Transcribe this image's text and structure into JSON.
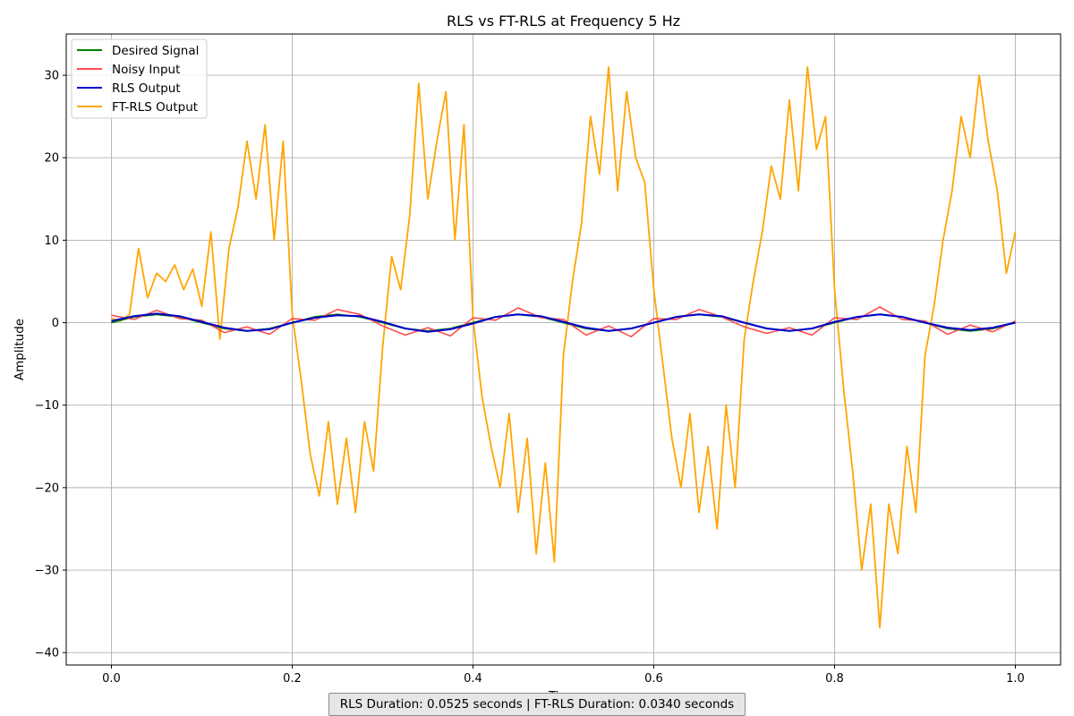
{
  "chart_data": {
    "type": "line",
    "title": "RLS vs FT-RLS at Frequency 5 Hz",
    "xlabel": "Time",
    "ylabel": "Amplitude",
    "xlim": [
      -0.05,
      1.05
    ],
    "ylim": [
      -41.5,
      35
    ],
    "xticks": [
      0.0,
      0.2,
      0.4,
      0.6,
      0.8,
      1.0
    ],
    "xtick_labels": [
      "0.0",
      "0.2",
      "0.4",
      "0.6",
      "0.8",
      "1.0"
    ],
    "yticks": [
      -40,
      -30,
      -20,
      -10,
      0,
      10,
      20,
      30
    ],
    "ytick_labels": [
      "−40",
      "−30",
      "−20",
      "−10",
      "0",
      "10",
      "20",
      "30"
    ],
    "grid": true,
    "legend_position": "top-left",
    "series": [
      {
        "name": "Desired Signal",
        "color": "#008000",
        "x": [
          0,
          0.025,
          0.05,
          0.075,
          0.1,
          0.125,
          0.15,
          0.175,
          0.2,
          0.225,
          0.25,
          0.275,
          0.3,
          0.325,
          0.35,
          0.375,
          0.4,
          0.425,
          0.45,
          0.475,
          0.5,
          0.525,
          0.55,
          0.575,
          0.6,
          0.625,
          0.65,
          0.675,
          0.7,
          0.725,
          0.75,
          0.775,
          0.8,
          0.825,
          0.85,
          0.875,
          0.9,
          0.925,
          0.95,
          0.975,
          1.0
        ],
        "y": [
          0,
          0.71,
          1,
          0.71,
          0,
          -0.71,
          -1,
          -0.71,
          0,
          0.71,
          1,
          0.71,
          0,
          -0.71,
          -1,
          -0.71,
          0,
          0.71,
          1,
          0.71,
          0,
          -0.71,
          -1,
          -0.71,
          0,
          0.71,
          1,
          0.71,
          0,
          -0.71,
          -1,
          -0.71,
          0,
          0.71,
          1,
          0.71,
          0,
          -0.71,
          -1,
          -0.71,
          0
        ]
      },
      {
        "name": "Noisy Input",
        "color": "#ff4d4d",
        "x": [
          0,
          0.025,
          0.05,
          0.075,
          0.1,
          0.125,
          0.15,
          0.175,
          0.2,
          0.225,
          0.25,
          0.275,
          0.3,
          0.325,
          0.35,
          0.375,
          0.4,
          0.425,
          0.45,
          0.475,
          0.5,
          0.525,
          0.55,
          0.575,
          0.6,
          0.625,
          0.65,
          0.675,
          0.7,
          0.725,
          0.75,
          0.775,
          0.8,
          0.825,
          0.85,
          0.875,
          0.9,
          0.925,
          0.95,
          0.975,
          1.0
        ],
        "y": [
          0.9,
          0.4,
          1.5,
          0.5,
          0.3,
          -1.2,
          -0.5,
          -1.4,
          0.5,
          0.3,
          1.6,
          1.0,
          -0.4,
          -1.5,
          -0.6,
          -1.6,
          0.6,
          0.3,
          1.8,
          0.6,
          0.4,
          -1.5,
          -0.4,
          -1.7,
          0.5,
          0.4,
          1.6,
          0.7,
          -0.5,
          -1.3,
          -0.6,
          -1.5,
          0.6,
          0.4,
          1.9,
          0.4,
          0.2,
          -1.4,
          -0.3,
          -1.1,
          0.2
        ]
      },
      {
        "name": "RLS Output",
        "color": "#0000cc",
        "x": [
          0,
          0.025,
          0.05,
          0.075,
          0.1,
          0.125,
          0.15,
          0.175,
          0.2,
          0.225,
          0.25,
          0.275,
          0.3,
          0.325,
          0.35,
          0.375,
          0.4,
          0.425,
          0.45,
          0.475,
          0.5,
          0.525,
          0.55,
          0.575,
          0.6,
          0.625,
          0.65,
          0.675,
          0.7,
          0.725,
          0.75,
          0.775,
          0.8,
          0.825,
          0.85,
          0.875,
          0.9,
          0.925,
          0.95,
          0.975,
          1.0
        ],
        "y": [
          0.2,
          0.8,
          1.1,
          0.8,
          0.1,
          -0.6,
          -1.0,
          -0.8,
          0.0,
          0.6,
          0.9,
          0.8,
          0.1,
          -0.7,
          -1.1,
          -0.8,
          -0.1,
          0.7,
          1.0,
          0.8,
          0.1,
          -0.6,
          -1.0,
          -0.7,
          0.0,
          0.7,
          1.0,
          0.8,
          0.0,
          -0.7,
          -1.0,
          -0.7,
          0.1,
          0.7,
          1.0,
          0.7,
          0.0,
          -0.6,
          -0.9,
          -0.6,
          0.0
        ]
      },
      {
        "name": "FT-RLS Output",
        "color": "#ffa500",
        "x": [
          0,
          0.01,
          0.02,
          0.03,
          0.04,
          0.05,
          0.06,
          0.07,
          0.08,
          0.09,
          0.1,
          0.11,
          0.12,
          0.13,
          0.14,
          0.15,
          0.16,
          0.17,
          0.18,
          0.19,
          0.2,
          0.21,
          0.22,
          0.23,
          0.24,
          0.25,
          0.26,
          0.27,
          0.28,
          0.29,
          0.3,
          0.31,
          0.32,
          0.33,
          0.34,
          0.35,
          0.36,
          0.37,
          0.38,
          0.39,
          0.4,
          0.41,
          0.42,
          0.43,
          0.44,
          0.45,
          0.46,
          0.47,
          0.48,
          0.49,
          0.5,
          0.51,
          0.52,
          0.53,
          0.54,
          0.55,
          0.56,
          0.57,
          0.58,
          0.59,
          0.6,
          0.61,
          0.62,
          0.63,
          0.64,
          0.65,
          0.66,
          0.67,
          0.68,
          0.69,
          0.7,
          0.71,
          0.72,
          0.73,
          0.74,
          0.75,
          0.76,
          0.77,
          0.78,
          0.79,
          0.8,
          0.81,
          0.82,
          0.83,
          0.84,
          0.85,
          0.86,
          0.87,
          0.88,
          0.89,
          0.9,
          0.91,
          0.92,
          0.93,
          0.94,
          0.95,
          0.96,
          0.97,
          0.98,
          0.99,
          1.0
        ],
        "y": [
          0.5,
          0.2,
          1.0,
          9.0,
          3.0,
          6.0,
          5.0,
          7.0,
          4.0,
          6.5,
          2.0,
          11.0,
          -2.0,
          9.0,
          14.0,
          22.0,
          15.0,
          24.0,
          10.0,
          22.0,
          1.0,
          -7.0,
          -16.0,
          -21.0,
          -12.0,
          -22.0,
          -14.0,
          -23.0,
          -12.0,
          -18.0,
          -3.0,
          8.0,
          4.0,
          13.0,
          29.0,
          15.0,
          22.0,
          28.0,
          10.0,
          24.0,
          0.5,
          -9.0,
          -15.0,
          -20.0,
          -11.0,
          -23.0,
          -14.0,
          -28.0,
          -17.0,
          -29.0,
          -4.0,
          5.0,
          12.0,
          25.0,
          18.0,
          31.0,
          16.0,
          28.0,
          20.0,
          17.0,
          4.0,
          -5.0,
          -14.0,
          -20.0,
          -11.0,
          -23.0,
          -15.0,
          -25.0,
          -10.0,
          -20.0,
          -2.0,
          5.0,
          11.0,
          19.0,
          15.0,
          27.0,
          16.0,
          31.0,
          21.0,
          25.0,
          4.0,
          -8.0,
          -18.0,
          -30.0,
          -22.0,
          -37.0,
          -22.0,
          -28.0,
          -15.0,
          -23.0,
          -4.0,
          2.0,
          10.0,
          16.0,
          25.0,
          20.0,
          30.0,
          22.0,
          16.0,
          6.0,
          11.0
        ]
      }
    ]
  },
  "footer": {
    "text": "RLS Duration: 0.0525 seconds | FT-RLS Duration: 0.0340 seconds"
  }
}
